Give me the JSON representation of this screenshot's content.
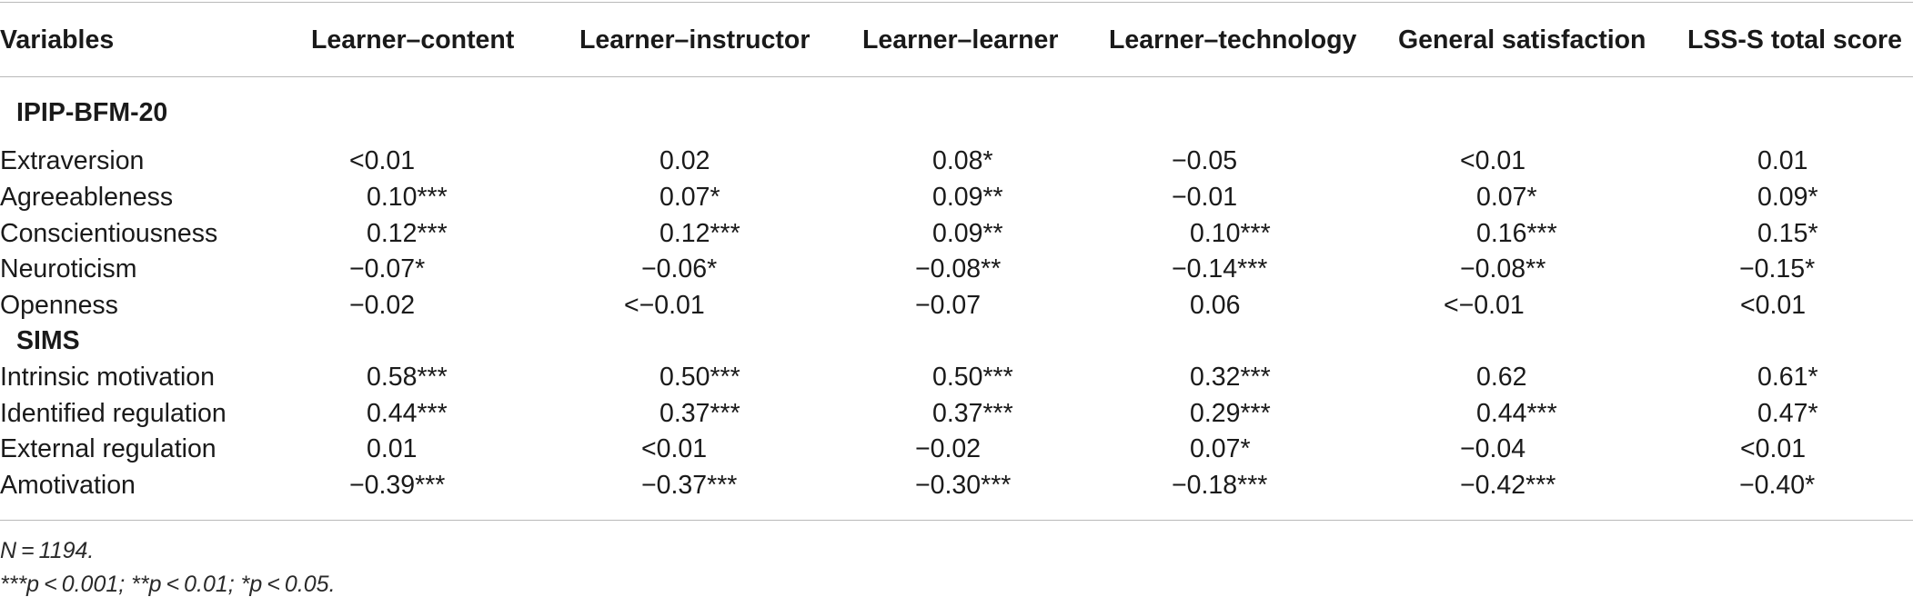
{
  "table": {
    "headers": [
      "Variables",
      "Learner–content",
      "Learner–instructor",
      "Learner–learner",
      "Learner–technology",
      "General satisfaction",
      "LSS-S total score"
    ],
    "sections": [
      {
        "title": "IPIP-BFM-20",
        "rows": [
          {
            "label": "Extraversion",
            "values": [
              "<0.01",
              "0.02",
              "0.08*",
              "−0.05",
              "<0.01",
              "0.01"
            ]
          },
          {
            "label": "Agreeableness",
            "values": [
              "0.10***",
              "0.07*",
              "0.09**",
              "−0.01",
              "0.07*",
              "0.09*"
            ]
          },
          {
            "label": "Conscientiousness",
            "values": [
              "0.12***",
              "0.12***",
              "0.09**",
              "0.10***",
              "0.16***",
              "0.15*"
            ]
          },
          {
            "label": "Neuroticism",
            "values": [
              "−0.07*",
              "−0.06*",
              "−0.08**",
              "−0.14***",
              "−0.08**",
              "−0.15*"
            ]
          },
          {
            "label": "Openness",
            "values": [
              "−0.02",
              "<−0.01",
              "−0.07",
              "0.06",
              "<−0.01",
              "<0.01"
            ]
          }
        ]
      },
      {
        "title": "SIMS",
        "rows": [
          {
            "label": "Intrinsic motivation",
            "values": [
              "0.58***",
              "0.50***",
              "0.50***",
              "0.32***",
              "0.62",
              "0.61*"
            ]
          },
          {
            "label": "Identified regulation",
            "values": [
              "0.44***",
              "0.37***",
              "0.37***",
              "0.29***",
              "0.44***",
              "0.47*"
            ]
          },
          {
            "label": "External regulation",
            "values": [
              "0.01",
              "<0.01",
              "−0.02",
              "0.07*",
              "−0.04",
              "<0.01"
            ]
          },
          {
            "label": "Amotivation",
            "values": [
              "−0.39***",
              "−0.37***",
              "−0.30***",
              "−0.18***",
              "−0.42***",
              "−0.40*"
            ]
          }
        ]
      }
    ],
    "notes": [
      "N = 1194.",
      "***p < 0.001; **p < 0.01; *p < 0.05."
    ]
  }
}
